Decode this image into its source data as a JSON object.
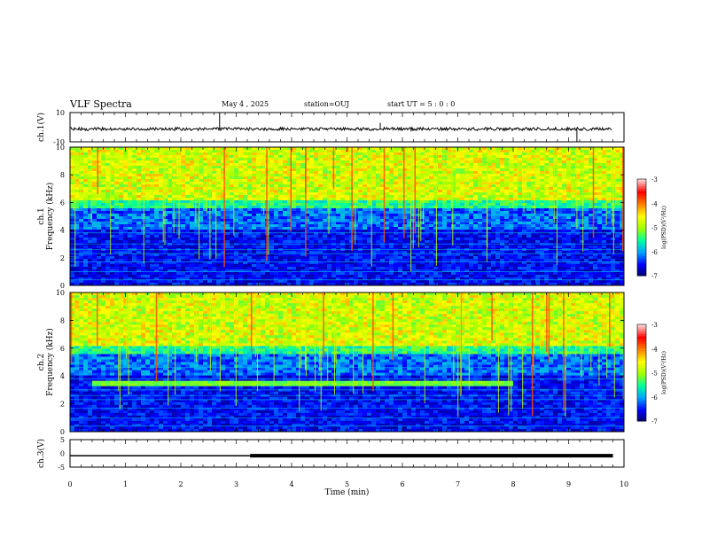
{
  "header": {
    "title": "VLF Spectra",
    "date": "May 4 , 2025",
    "station": "station=OUJ",
    "start": "start UT = 5 : 0 : 0"
  },
  "colors": {
    "spectrogram_scale": [
      "#000060",
      "#0000ff",
      "#00a0ff",
      "#00ffa0",
      "#a0ff00",
      "#ffff00",
      "#ff8000",
      "#ff0000",
      "#ffd0d0"
    ],
    "trace": "#000000"
  },
  "chart_data": [
    {
      "type": "line",
      "panel": "ch1-waveform",
      "ylabel": "ch.1(V)",
      "ylim": [
        -10,
        10
      ],
      "ytick_labels": [
        "-10",
        "10"
      ],
      "baseline": 0,
      "spikes": [
        {
          "x": 2.7,
          "y": 10
        },
        {
          "x": 5.6,
          "y": 3
        },
        {
          "x": 9.15,
          "y": -10
        }
      ]
    },
    {
      "type": "heatmap",
      "panel": "ch1-spectrogram",
      "ylabel": "ch.1\nFrequency (kHz)",
      "ylim": [
        0,
        10
      ],
      "ytick_labels": [
        "0",
        "2",
        "4",
        "6",
        "8",
        "10"
      ],
      "xlim": [
        0,
        10
      ],
      "colorbar": {
        "label": "log(PSD)(V²/Hz)",
        "range": [
          -7,
          -3
        ],
        "tick_labels": [
          "-3",
          "-4",
          "-5",
          "-6",
          "-7"
        ]
      }
    },
    {
      "type": "heatmap",
      "panel": "ch2-spectrogram",
      "ylabel": "ch.2\nFrequency (kHz)",
      "ylim": [
        0,
        10
      ],
      "ytick_labels": [
        "0",
        "2",
        "4",
        "6",
        "8",
        "10"
      ],
      "xlim": [
        0,
        10
      ],
      "colorbar": {
        "label": "log(PSD)(V²/Hz)",
        "range": [
          -7,
          -3
        ],
        "tick_labels": [
          "-3",
          "-4",
          "-5",
          "-6",
          "-7"
        ]
      }
    },
    {
      "type": "line",
      "panel": "ch3-waveform",
      "ylabel": "ch.3(V)",
      "ylim": [
        -5,
        5
      ],
      "ytick_labels": [
        "-5",
        "0",
        "5"
      ],
      "segments": [
        {
          "x": [
            0,
            3.25
          ],
          "y": -1.5,
          "weight": "thin"
        },
        {
          "x": [
            3.25,
            9.8
          ],
          "y": -1.5,
          "weight": "thick"
        }
      ],
      "xlabel": "Time (min)",
      "xlim": [
        0,
        10
      ],
      "xtick_labels": [
        "0",
        "1",
        "2",
        "3",
        "4",
        "5",
        "6",
        "7",
        "8",
        "9",
        "10"
      ]
    }
  ]
}
